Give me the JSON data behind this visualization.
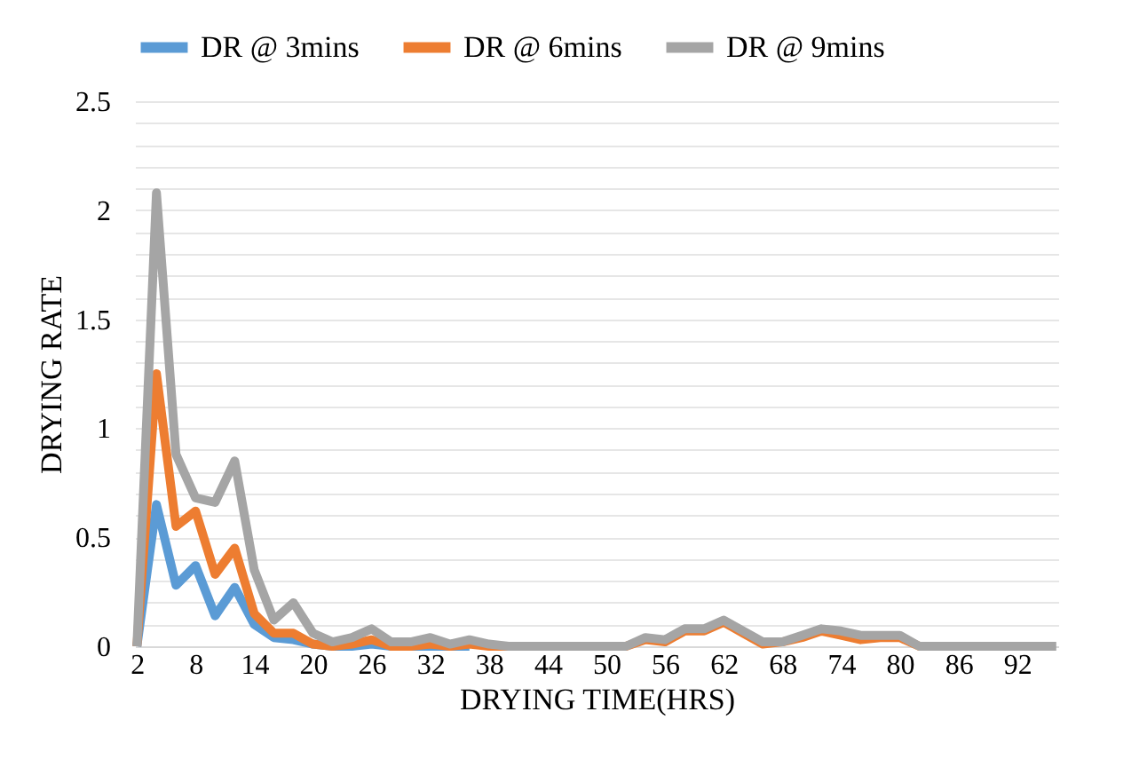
{
  "chart_data": {
    "type": "line",
    "xlabel": "DRYING TIME(HRS)",
    "ylabel": "DRYING RATE",
    "categories": [
      "2",
      null,
      null,
      "8",
      null,
      null,
      "14",
      null,
      null,
      "20",
      null,
      null,
      "26",
      null,
      null,
      "32",
      null,
      null,
      "38",
      null,
      null,
      "44",
      null,
      null,
      "50",
      null,
      null,
      "56",
      null,
      null,
      "62",
      null,
      null,
      "68",
      null,
      null,
      "74",
      null,
      null,
      "80",
      null,
      null,
      "86",
      null,
      null,
      "92",
      null,
      null
    ],
    "series": [
      {
        "name": "DR @ 3mins",
        "color": "#5b9bd5",
        "values": [
          0,
          0.65,
          0.28,
          0.37,
          0.14,
          0.27,
          0.1,
          0.04,
          0.03,
          0.01,
          0,
          0,
          0.01,
          0,
          0,
          0,
          0,
          0,
          null,
          null,
          null,
          null,
          null,
          null,
          null,
          null,
          null,
          null,
          null,
          null,
          null,
          null,
          null,
          null,
          null,
          null,
          null,
          null,
          null,
          null,
          null,
          null,
          null,
          null,
          null,
          null,
          null,
          null
        ]
      },
      {
        "name": "DR @ 6mins",
        "color": "#ed7d31",
        "values": [
          0,
          1.25,
          0.55,
          0.62,
          0.33,
          0.45,
          0.15,
          0.06,
          0.06,
          0.01,
          0,
          0.01,
          0.03,
          0,
          0,
          0.01,
          0,
          0.01,
          0,
          0,
          0,
          0,
          0,
          0,
          0,
          0,
          0.03,
          0.02,
          0.07,
          0.07,
          0.11,
          0.06,
          0.01,
          0.02,
          0.04,
          0.07,
          0.05,
          0.03,
          0.04,
          0.04,
          0,
          0,
          null,
          null,
          null,
          null,
          null,
          null
        ]
      },
      {
        "name": "DR @ 9mins",
        "color": "#a5a5a5",
        "values": [
          0,
          2.08,
          0.88,
          0.68,
          0.66,
          0.85,
          0.35,
          0.12,
          0.2,
          0.06,
          0.02,
          0.04,
          0.08,
          0.02,
          0.02,
          0.04,
          0.01,
          0.03,
          0.01,
          0,
          0,
          0,
          0,
          0,
          0,
          0,
          0.04,
          0.03,
          0.08,
          0.08,
          0.12,
          0.07,
          0.02,
          0.02,
          0.05,
          0.08,
          0.07,
          0.05,
          0.05,
          0.05,
          0,
          0,
          0,
          0,
          0,
          0,
          0,
          0
        ]
      }
    ],
    "ylim": [
      0,
      2.5
    ],
    "yticks": [
      0,
      {
        "value": 0.1,
        "label": null
      },
      {
        "value": 0.2,
        "label": null
      },
      {
        "value": 0.3,
        "label": null
      },
      {
        "value": 0.4,
        "label": null
      },
      0.5,
      {
        "value": 0.6,
        "label": null
      },
      {
        "value": 0.7,
        "label": null
      },
      {
        "value": 0.8,
        "label": null
      },
      {
        "value": 0.9,
        "label": null
      },
      1,
      {
        "value": 1.1,
        "label": null
      },
      {
        "value": 1.2,
        "label": null
      },
      {
        "value": 1.3,
        "label": null
      },
      {
        "value": 1.4,
        "label": null
      },
      1.5,
      {
        "value": 1.6,
        "label": null
      },
      {
        "value": 1.7,
        "label": null
      },
      {
        "value": 1.8,
        "label": null
      },
      {
        "value": 1.9,
        "label": null
      },
      2,
      {
        "value": 2.1,
        "label": null
      },
      {
        "value": 2.2,
        "label": null
      },
      {
        "value": 2.3,
        "label": null
      },
      {
        "value": 2.4,
        "label": null
      },
      2.5
    ],
    "grid": "y",
    "legend": "top",
    "marker": "none",
    "line_style": "solid"
  }
}
